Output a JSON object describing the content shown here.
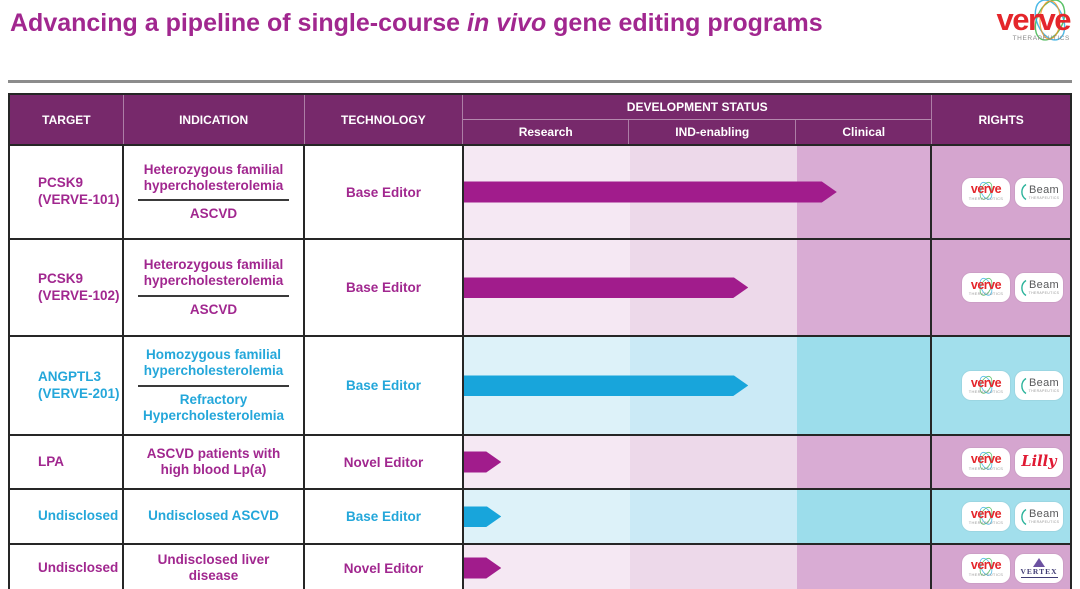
{
  "title": {
    "part1": "Advancing a pipeline of single-course ",
    "italic": "in vivo",
    "part2": " gene editing programs"
  },
  "brand": {
    "name": "verve",
    "tagline": "THERAPEUTICS"
  },
  "table": {
    "columns": {
      "target": "TARGET",
      "indication": "INDICATION",
      "technology": "TECHNOLOGY",
      "development_status": "DEVELOPMENT STATUS",
      "rights": "RIGHTS"
    },
    "stages": [
      "Research",
      "IND-enabling",
      "Clinical"
    ],
    "rows": [
      {
        "target": [
          "PCSK9",
          "(VERVE-101)"
        ],
        "indications": [
          "Heterozygous familial hypercholesterolemia",
          "ASCVD"
        ],
        "technology": "Base Editor",
        "theme": "purple",
        "progress_pct": 80,
        "progress_stage": "Clinical",
        "partners": [
          "verve",
          "beam"
        ]
      },
      {
        "target": [
          "PCSK9",
          "(VERVE-102)"
        ],
        "indications": [
          "Heterozygous familial hypercholesterolemia",
          "ASCVD"
        ],
        "technology": "Base Editor",
        "theme": "purple",
        "progress_pct": 61,
        "progress_stage": "IND-enabling",
        "partners": [
          "verve",
          "beam"
        ]
      },
      {
        "target": [
          "ANGPTL3",
          "(VERVE-201)"
        ],
        "indications": [
          "Homozygous familial hypercholesterolemia",
          "Refractory Hypercholesterolemia"
        ],
        "technology": "Base Editor",
        "theme": "cyan",
        "progress_pct": 61,
        "progress_stage": "IND-enabling",
        "partners": [
          "verve",
          "beam"
        ]
      },
      {
        "target": [
          "LPA"
        ],
        "indications": [
          "ASCVD patients with high blood Lp(a)"
        ],
        "technology": "Novel Editor",
        "theme": "purple",
        "progress_pct": 8,
        "progress_stage": "Research",
        "partners": [
          "verve",
          "lilly"
        ]
      },
      {
        "target": [
          "Undisclosed"
        ],
        "indications": [
          "Undisclosed ASCVD"
        ],
        "technology": "Base Editor",
        "theme": "cyan",
        "progress_pct": 8,
        "progress_stage": "Research",
        "partners": [
          "verve",
          "beam"
        ]
      },
      {
        "target": [
          "Undisclosed"
        ],
        "indications": [
          "Undisclosed liver disease"
        ],
        "technology": "Novel Editor",
        "theme": "purple",
        "progress_pct": 8,
        "progress_stage": "Research",
        "partners": [
          "verve",
          "vertex"
        ]
      }
    ]
  },
  "partner_logos": {
    "verve": {
      "label": "verve",
      "sub": "THERAPEUTICS"
    },
    "beam": {
      "label": "Beam",
      "sub": "THERAPEUTICS"
    },
    "lilly": {
      "label": "Lilly"
    },
    "vertex": {
      "label": "VERTEX"
    }
  },
  "colors": {
    "accent_purple": "#A1278F",
    "accent_cyan": "#24A7DA",
    "arrow_purple": "#A11C8C",
    "arrow_cyan": "#18A5DB",
    "header_bg": "#77296B",
    "brand_red": "#E4262B"
  }
}
